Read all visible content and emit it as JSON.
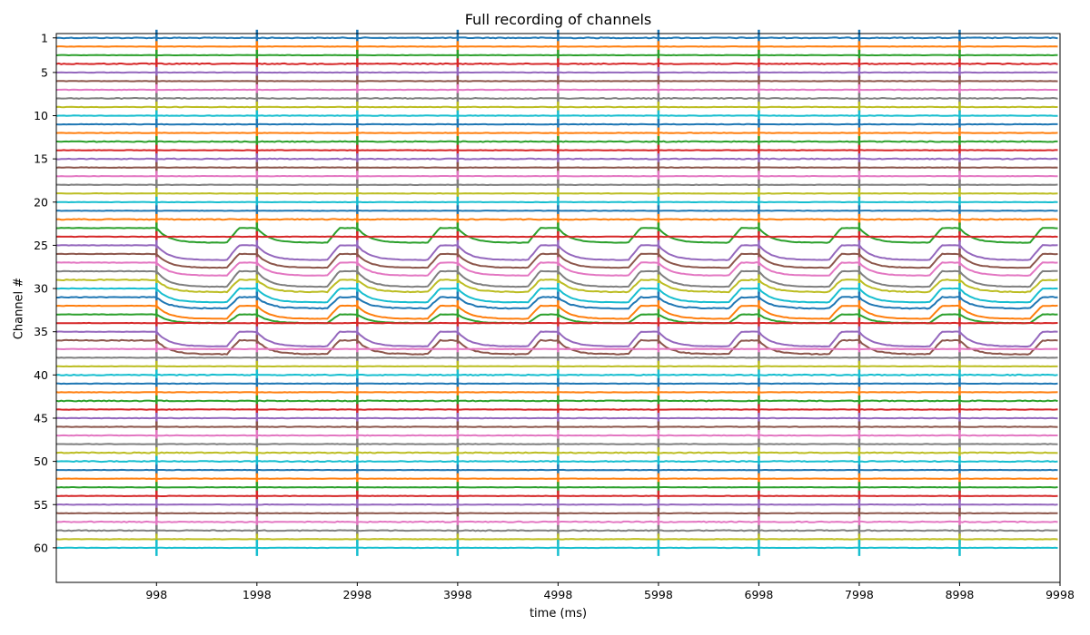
{
  "chart_data": {
    "type": "line",
    "title": "Full recording of channels",
    "xlabel": "time (ms)",
    "ylabel": "Channel #",
    "xlim": [
      0,
      9998
    ],
    "ylim": [
      0.5,
      64
    ],
    "y_inverted": true,
    "x_ticks": [
      998,
      1998,
      2998,
      3998,
      4998,
      5998,
      6998,
      7998,
      8998,
      9998
    ],
    "y_ticks": [
      1,
      5,
      10,
      15,
      20,
      25,
      30,
      35,
      40,
      45,
      50,
      55,
      60
    ],
    "channels": 60,
    "stimulus_times_ms": [
      998,
      1998,
      2998,
      3998,
      4998,
      5998,
      6998,
      7998,
      8998
    ],
    "series_colors": [
      "#1f77b4",
      "#ff7f0e",
      "#2ca02c",
      "#d62728",
      "#9467bd",
      "#8c564b",
      "#e377c2",
      "#7f7f7f",
      "#bcbd22",
      "#17becf"
    ],
    "responsive_channels": [
      {
        "channel": 23,
        "response_amplitude": 1.7
      },
      {
        "channel": 25,
        "response_amplitude": 1.7
      },
      {
        "channel": 26,
        "response_amplitude": 1.6
      },
      {
        "channel": 27,
        "response_amplitude": 1.5
      },
      {
        "channel": 28,
        "response_amplitude": 1.8
      },
      {
        "channel": 29,
        "response_amplitude": 1.4
      },
      {
        "channel": 30,
        "response_amplitude": 1.6
      },
      {
        "channel": 31,
        "response_amplitude": 1.3
      },
      {
        "channel": 32,
        "response_amplitude": 1.5
      },
      {
        "channel": 33,
        "response_amplitude": 1.0
      },
      {
        "channel": 35,
        "response_amplitude": 1.7
      },
      {
        "channel": 36,
        "response_amplitude": 1.6
      }
    ],
    "grid": false,
    "legend": "none"
  }
}
